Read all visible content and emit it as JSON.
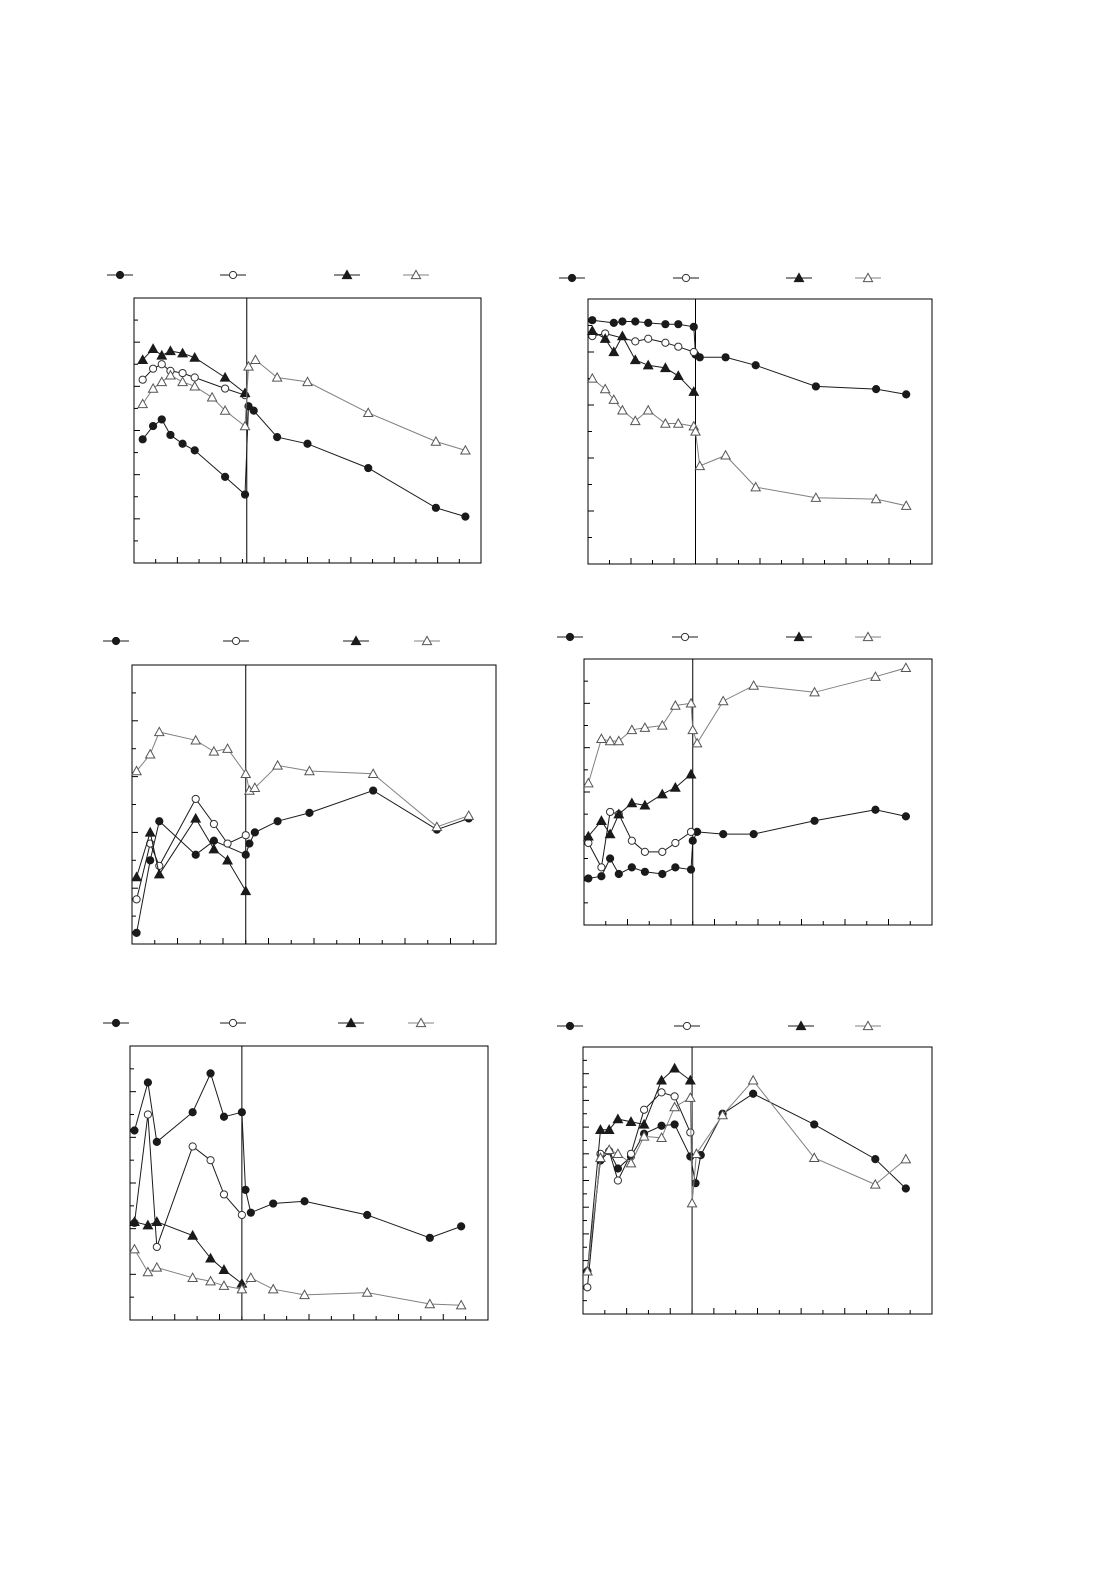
{
  "colors": {
    "axis": "#000000",
    "dark_series": "#1a1a1a",
    "light_series": "#808080",
    "background": "#ffffff"
  },
  "chart_data": [
    {
      "type": "line",
      "title": "",
      "xlabel": "",
      "ylabel": "",
      "xlim": [
        0,
        40
      ],
      "ylim": [
        0,
        12
      ],
      "xticks": 16,
      "yticks": 12,
      "divider_x": 13,
      "grid": false,
      "legend": "top",
      "series": [
        {
          "marker": "circle-filled",
          "line": "dark",
          "x": [
            1,
            2.2,
            3.2,
            4.2,
            5.6,
            7,
            10.5,
            12.8,
            13.2,
            13.8,
            16.5,
            20,
            27,
            34.8,
            38.2
          ],
          "y": [
            5.6,
            6.2,
            6.5,
            5.8,
            5.4,
            5.1,
            3.9,
            3.1,
            7.1,
            6.9,
            5.7,
            5.4,
            4.3,
            2.5,
            2.1
          ]
        },
        {
          "marker": "circle-open",
          "line": "dark",
          "x": [
            1,
            2.2,
            3.2,
            4.2,
            5.6,
            7,
            10.5,
            12.8
          ],
          "y": [
            8.3,
            8.8,
            9.0,
            8.7,
            8.6,
            8.4,
            7.9,
            7.6
          ]
        },
        {
          "marker": "triangle-filled",
          "line": "dark",
          "x": [
            1,
            2.2,
            3.2,
            4.2,
            5.6,
            7,
            10.5,
            12.8
          ],
          "y": [
            9.2,
            9.7,
            9.4,
            9.6,
            9.5,
            9.3,
            8.4,
            7.7
          ]
        },
        {
          "marker": "triangle-open",
          "line": "light",
          "x": [
            1,
            2.2,
            3.2,
            4.2,
            5.6,
            7,
            9,
            10.5,
            12.8,
            13.2,
            14,
            16.5,
            20,
            27,
            34.8,
            38.2
          ],
          "y": [
            7.2,
            7.9,
            8.2,
            8.5,
            8.2,
            8.0,
            7.5,
            6.9,
            6.2,
            8.9,
            9.2,
            8.4,
            8.2,
            6.8,
            5.5,
            5.1
          ]
        }
      ]
    },
    {
      "type": "line",
      "title": "",
      "xlabel": "",
      "ylabel": "",
      "xlim": [
        0,
        40
      ],
      "ylim": [
        0,
        10
      ],
      "xticks": 16,
      "yticks": 10,
      "divider_x": 12.5,
      "grid": false,
      "legend": "top",
      "series": [
        {
          "marker": "circle-filled",
          "line": "dark",
          "x": [
            0.5,
            3,
            4,
            5.5,
            7,
            9,
            10.5,
            12.3,
            12.5,
            13,
            16,
            19.5,
            26.5,
            33.5,
            37
          ],
          "y": [
            9.2,
            9.1,
            9.15,
            9.15,
            9.1,
            9.05,
            9.05,
            8.95,
            7.9,
            7.8,
            7.8,
            7.5,
            6.7,
            6.6,
            6.4
          ]
        },
        {
          "marker": "circle-open",
          "line": "dark",
          "x": [
            0.5,
            2,
            5.5,
            7,
            9,
            10.5,
            12.3
          ],
          "y": [
            8.6,
            8.7,
            8.4,
            8.5,
            8.35,
            8.2,
            8.0
          ]
        },
        {
          "marker": "triangle-filled",
          "line": "dark",
          "x": [
            0.5,
            2,
            3,
            4,
            5.5,
            7,
            9,
            10.5,
            12.3
          ],
          "y": [
            8.8,
            8.5,
            8.0,
            8.6,
            7.7,
            7.5,
            7.4,
            7.1,
            6.5
          ]
        },
        {
          "marker": "triangle-open",
          "line": "light",
          "x": [
            0.5,
            2,
            3,
            4,
            5.5,
            7,
            9,
            10.5,
            12.3,
            12.5,
            13,
            16,
            19.5,
            26.5,
            33.5,
            37
          ],
          "y": [
            7.0,
            6.6,
            6.2,
            5.8,
            5.4,
            5.8,
            5.3,
            5.3,
            5.2,
            5.0,
            3.7,
            4.1,
            2.9,
            2.5,
            2.45,
            2.2
          ]
        }
      ]
    },
    {
      "type": "line",
      "title": "",
      "xlabel": "",
      "ylabel": "",
      "xlim": [
        0,
        40
      ],
      "ylim": [
        0,
        5
      ],
      "xticks": 16,
      "yticks": 10,
      "divider_x": 12.5,
      "grid": false,
      "legend": "top",
      "series": [
        {
          "marker": "circle-filled",
          "line": "dark",
          "x": [
            0.5,
            2,
            3,
            7,
            9,
            12.5,
            12.9,
            13.5,
            16,
            19.5,
            26.5,
            33.5,
            37
          ],
          "y": [
            0.2,
            1.5,
            2.2,
            1.6,
            1.85,
            1.6,
            1.8,
            2.0,
            2.2,
            2.35,
            2.75,
            2.05,
            2.25
          ]
        },
        {
          "marker": "circle-open",
          "line": "dark",
          "x": [
            0.5,
            2,
            3,
            7,
            9,
            10.5,
            12.5
          ],
          "y": [
            0.8,
            1.8,
            1.4,
            2.6,
            2.15,
            1.8,
            1.95
          ]
        },
        {
          "marker": "triangle-filled",
          "line": "dark",
          "x": [
            0.5,
            2,
            3,
            7,
            9,
            10.5,
            12.5
          ],
          "y": [
            1.2,
            2.0,
            1.25,
            2.25,
            1.7,
            1.5,
            0.95
          ]
        },
        {
          "marker": "triangle-open",
          "line": "light",
          "x": [
            0.5,
            2,
            3,
            7,
            9,
            10.5,
            12.5,
            12.9,
            13.5,
            16,
            19.5,
            26.5,
            33.5,
            37
          ],
          "y": [
            3.1,
            3.4,
            3.8,
            3.65,
            3.45,
            3.5,
            3.05,
            2.75,
            2.8,
            3.2,
            3.1,
            3.05,
            2.1,
            2.3
          ]
        }
      ]
    },
    {
      "type": "line",
      "title": "",
      "xlabel": "",
      "ylabel": "",
      "xlim": [
        0,
        40
      ],
      "ylim": [
        0,
        6
      ],
      "xticks": 16,
      "yticks": 12,
      "divider_x": 12.5,
      "grid": false,
      "legend": "top",
      "series": [
        {
          "marker": "circle-filled",
          "line": "dark",
          "x": [
            0.5,
            2,
            3,
            4,
            5.5,
            7,
            9,
            10.5,
            12.3,
            12.5,
            13,
            16,
            19.5,
            26.5,
            33.5,
            37
          ],
          "y": [
            1.05,
            1.1,
            1.5,
            1.15,
            1.3,
            1.2,
            1.15,
            1.3,
            1.25,
            1.9,
            2.1,
            2.05,
            2.05,
            2.35,
            2.6,
            2.45
          ]
        },
        {
          "marker": "circle-open",
          "line": "dark",
          "x": [
            0.5,
            2,
            3,
            4,
            5.5,
            7,
            9,
            10.5,
            12.3
          ],
          "y": [
            1.85,
            1.3,
            2.55,
            2.5,
            1.9,
            1.65,
            1.65,
            1.85,
            2.1
          ]
        },
        {
          "marker": "triangle-filled",
          "line": "dark",
          "x": [
            0.5,
            2,
            3,
            4,
            5.5,
            7,
            9,
            10.5,
            12.3
          ],
          "y": [
            2.0,
            2.35,
            2.05,
            2.5,
            2.75,
            2.7,
            2.95,
            3.1,
            3.4
          ]
        },
        {
          "marker": "triangle-open",
          "line": "light",
          "x": [
            0.5,
            2,
            3,
            4,
            5.5,
            7,
            9,
            10.5,
            12.3,
            12.5,
            13,
            16,
            19.5,
            26.5,
            33.5,
            37
          ],
          "y": [
            3.2,
            4.2,
            4.15,
            4.15,
            4.4,
            4.45,
            4.5,
            4.95,
            5.0,
            4.4,
            4.1,
            5.05,
            5.4,
            5.25,
            5.6,
            5.8
          ]
        }
      ]
    },
    {
      "type": "line",
      "title": "",
      "xlabel": "",
      "ylabel": "",
      "xlim": [
        0,
        40
      ],
      "ylim": [
        0,
        12
      ],
      "xticks": 16,
      "yticks": 12,
      "divider_x": 12.5,
      "grid": false,
      "legend": "top",
      "series": [
        {
          "marker": "circle-filled",
          "line": "dark",
          "x": [
            0.5,
            2,
            3,
            7,
            9,
            10.5,
            12.5,
            12.9,
            13.5,
            16,
            19.5,
            26.5,
            33.5,
            37
          ],
          "y": [
            8.3,
            10.4,
            7.8,
            9.1,
            10.8,
            8.9,
            9.1,
            5.7,
            4.7,
            5.1,
            5.2,
            4.6,
            3.6,
            4.1
          ]
        },
        {
          "marker": "circle-open",
          "line": "dark",
          "x": [
            0.5,
            2,
            3,
            7,
            9,
            10.5,
            12.5
          ],
          "y": [
            4.25,
            9.0,
            3.2,
            7.6,
            7.0,
            5.5,
            4.6
          ]
        },
        {
          "marker": "triangle-filled",
          "line": "dark",
          "x": [
            0.5,
            2,
            3,
            7,
            9,
            10.5,
            12.5
          ],
          "y": [
            4.3,
            4.15,
            4.3,
            3.7,
            2.7,
            2.2,
            1.6
          ]
        },
        {
          "marker": "triangle-open",
          "line": "light",
          "x": [
            0.5,
            2,
            3,
            7,
            9,
            10.5,
            12.5,
            13.5,
            16,
            19.5,
            26.5,
            33.5,
            37
          ],
          "y": [
            3.1,
            2.1,
            2.3,
            1.85,
            1.7,
            1.5,
            1.35,
            1.85,
            1.35,
            1.1,
            1.2,
            0.7,
            0.65
          ]
        }
      ]
    },
    {
      "type": "line",
      "title": "",
      "xlabel": "",
      "ylabel": "",
      "xlim": [
        0,
        40
      ],
      "ylim": [
        0,
        20
      ],
      "xticks": 16,
      "yticks": 20,
      "divider_x": 12.5,
      "grid": false,
      "legend": "top",
      "series": [
        {
          "marker": "circle-filled",
          "line": "dark",
          "x": [
            0.5,
            2,
            3,
            4,
            5.5,
            7,
            9,
            10.5,
            12.3,
            12.9,
            13.5,
            16,
            19.5,
            26.5,
            33.5,
            37
          ],
          "y": [
            3.2,
            11.5,
            12.2,
            10.9,
            11.8,
            13.5,
            14.1,
            14.2,
            11.8,
            9.8,
            11.9,
            15.0,
            16.5,
            14.2,
            11.6,
            9.4
          ]
        },
        {
          "marker": "circle-open",
          "line": "dark",
          "x": [
            0.5,
            2,
            3,
            4,
            5.5,
            7,
            9,
            10.5,
            12.3
          ],
          "y": [
            2.0,
            12.0,
            12.2,
            10.0,
            12.0,
            15.3,
            16.6,
            16.3,
            13.6
          ]
        },
        {
          "marker": "triangle-filled",
          "line": "dark",
          "x": [
            0.5,
            2,
            3,
            4,
            5.5,
            7,
            9,
            10.5,
            12.3
          ],
          "y": [
            3.2,
            13.8,
            13.8,
            14.6,
            14.4,
            14.2,
            17.5,
            18.4,
            17.5
          ]
        },
        {
          "marker": "triangle-open",
          "line": "light",
          "x": [
            0.5,
            2,
            3,
            4,
            5.5,
            7,
            9,
            10.5,
            12.3,
            12.5,
            13,
            16,
            19.5,
            26.5,
            33.5,
            37
          ],
          "y": [
            3.2,
            11.7,
            12.3,
            12.0,
            11.3,
            13.3,
            13.2,
            15.5,
            16.2,
            8.3,
            12.0,
            14.9,
            17.5,
            11.7,
            9.7,
            11.6
          ]
        }
      ]
    }
  ]
}
